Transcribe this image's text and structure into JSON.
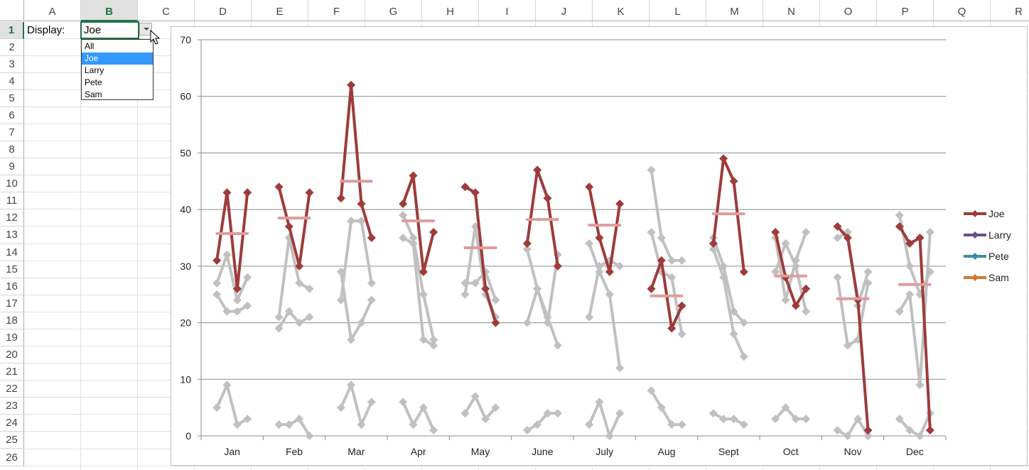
{
  "sheet": {
    "columns": [
      "A",
      "B",
      "C",
      "D",
      "E",
      "F",
      "G",
      "H",
      "I",
      "J",
      "K",
      "L",
      "M",
      "N",
      "O",
      "P",
      "Q",
      "R"
    ],
    "rows": [
      "1",
      "2",
      "3",
      "4",
      "5",
      "6",
      "7",
      "8",
      "9",
      "10",
      "11",
      "12",
      "13",
      "14",
      "15",
      "16",
      "17",
      "18",
      "19",
      "20",
      "21",
      "22",
      "23",
      "24",
      "25",
      "26"
    ],
    "selected_column": "B",
    "selected_row": "1",
    "a1_label": "Display:",
    "b1_value": "Joe"
  },
  "dropdown": {
    "options": [
      "All",
      "Joe",
      "Larry",
      "Pete",
      "Sam"
    ],
    "selected": "Joe"
  },
  "colors": {
    "joe": "#9e3b3b",
    "joe_avg": "#e09c9c",
    "gray": "#c0c0c0",
    "larry": "#6a4e8e",
    "pete": "#3a8fa6",
    "sam": "#d0782f",
    "grid": "#8c8c8c"
  },
  "chart_data": {
    "type": "line",
    "categories": [
      "Jan",
      "Feb",
      "Mar",
      "Apr",
      "May",
      "June",
      "July",
      "Aug",
      "Sept",
      "Oct",
      "Nov",
      "Dec"
    ],
    "points_per_category": 4,
    "ylim": [
      0,
      70
    ],
    "yticks": [
      "0",
      "10",
      "20",
      "30",
      "40",
      "50",
      "60",
      "70"
    ],
    "grid": true,
    "legend_position": "right",
    "highlighted": "Joe",
    "series": [
      {
        "name": "Joe",
        "values": [
          [
            31,
            43,
            26,
            43
          ],
          [
            44,
            37,
            30,
            43
          ],
          [
            42,
            62,
            41,
            35
          ],
          [
            41,
            46,
            29,
            36
          ],
          [
            44,
            43,
            26,
            20
          ],
          [
            34,
            47,
            42,
            30
          ],
          [
            44,
            35,
            29,
            41
          ],
          [
            26,
            31,
            19,
            23
          ],
          [
            34,
            49,
            45,
            29
          ],
          [
            36,
            28,
            23,
            26
          ],
          [
            37,
            35,
            24,
            1
          ],
          [
            37,
            34,
            35,
            1
          ]
        ]
      },
      {
        "name": "Larry",
        "values": [
          [
            27,
            32,
            24,
            28
          ],
          [
            21,
            35,
            27,
            26
          ],
          [
            24,
            38,
            38,
            27
          ],
          [
            39,
            35,
            25,
            17
          ],
          [
            25,
            37,
            25,
            21
          ],
          [
            33,
            26,
            21,
            16
          ],
          [
            34,
            29,
            25,
            12
          ],
          [
            47,
            35,
            31,
            31
          ],
          [
            35,
            30,
            22,
            20
          ],
          [
            29,
            34,
            30,
            22
          ],
          [
            35,
            36,
            23,
            29
          ],
          [
            39,
            30,
            25,
            29
          ]
        ]
      },
      {
        "name": "Pete",
        "values": [
          [
            25,
            22,
            22,
            23
          ],
          [
            19,
            22,
            20,
            21
          ],
          [
            29,
            17,
            20,
            24
          ],
          [
            35,
            34,
            17,
            16
          ],
          [
            27,
            27,
            29,
            24
          ],
          [
            20,
            26,
            20,
            32
          ],
          [
            21,
            30,
            31,
            30
          ],
          [
            36,
            29,
            28,
            18
          ],
          [
            33,
            28,
            18,
            14
          ],
          [
            35,
            24,
            31,
            36
          ],
          [
            28,
            16,
            17,
            27
          ],
          [
            22,
            25,
            9,
            36
          ]
        ]
      },
      {
        "name": "Sam",
        "values": [
          [
            5,
            9,
            2,
            3
          ],
          [
            2,
            2,
            3,
            0
          ],
          [
            5,
            9,
            2,
            6
          ],
          [
            6,
            2,
            5,
            1
          ],
          [
            4,
            7,
            3,
            5
          ],
          [
            1,
            2,
            4,
            4
          ],
          [
            2,
            6,
            0,
            4
          ],
          [
            8,
            5,
            2,
            2
          ],
          [
            4,
            3,
            3,
            2
          ],
          [
            3,
            5,
            3,
            3
          ],
          [
            1,
            0,
            3,
            0
          ],
          [
            3,
            1,
            0,
            4
          ]
        ]
      }
    ],
    "joe_average": [
      35.75,
      38.5,
      45,
      38,
      33.25,
      38.25,
      37.25,
      24.75,
      39.25,
      28.25,
      24.25,
      26.75
    ]
  }
}
